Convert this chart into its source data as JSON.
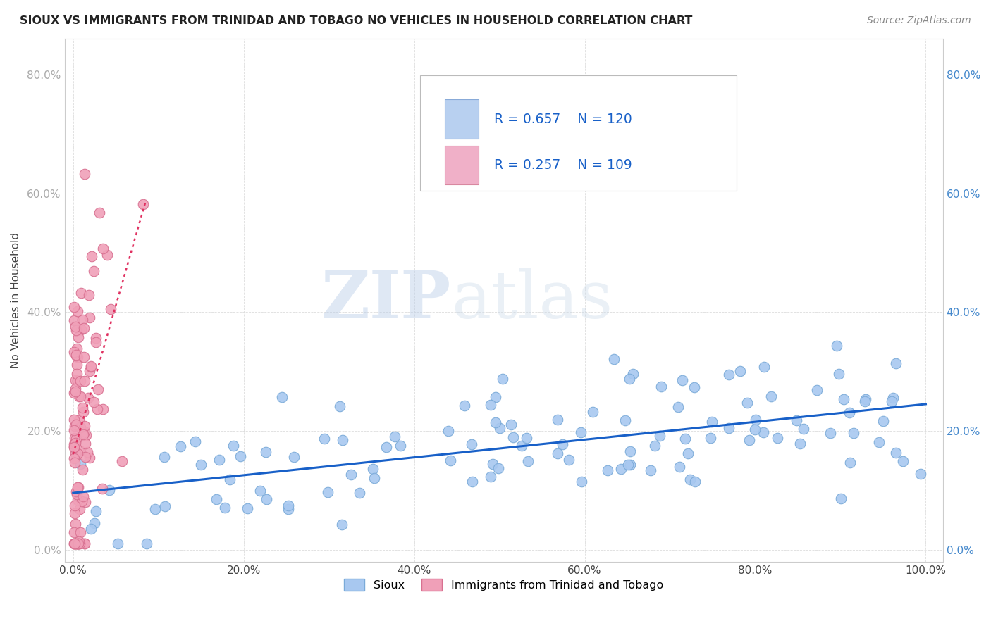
{
  "title": "SIOUX VS IMMIGRANTS FROM TRINIDAD AND TOBAGO NO VEHICLES IN HOUSEHOLD CORRELATION CHART",
  "source": "Source: ZipAtlas.com",
  "ylabel": "No Vehicles in Household",
  "legend_R_blue": "0.657",
  "legend_N_blue": "120",
  "legend_R_pink": "0.257",
  "legend_N_pink": "109",
  "sioux_color": "#a8c8f0",
  "sioux_edge": "#7aaad8",
  "tt_color": "#f0a0b8",
  "tt_edge": "#d87090",
  "sioux_trendline_color": "#1860c8",
  "tt_trendline_color": "#e03060",
  "tt_trendline_style": "dotted",
  "watermark_zip": "ZIP",
  "watermark_atlas": "atlas",
  "xlim": [
    -0.01,
    1.02
  ],
  "ylim": [
    -0.02,
    0.86
  ],
  "x_ticks": [
    0.0,
    0.2,
    0.4,
    0.6,
    0.8,
    1.0
  ],
  "x_tick_labels": [
    "0.0%",
    "20.0%",
    "40.0%",
    "60.0%",
    "80.0%",
    "100.0%"
  ],
  "y_ticks": [
    0.0,
    0.2,
    0.4,
    0.6,
    0.8
  ],
  "y_tick_labels": [
    "0.0%",
    "20.0%",
    "40.0%",
    "60.0%",
    "80.0%"
  ],
  "grid_color": "#dddddd",
  "legend_box_color": "#eeeeee",
  "legend_text_color": "#1860c8",
  "sioux_label": "Sioux",
  "tt_label": "Immigrants from Trinidad and Tobago"
}
